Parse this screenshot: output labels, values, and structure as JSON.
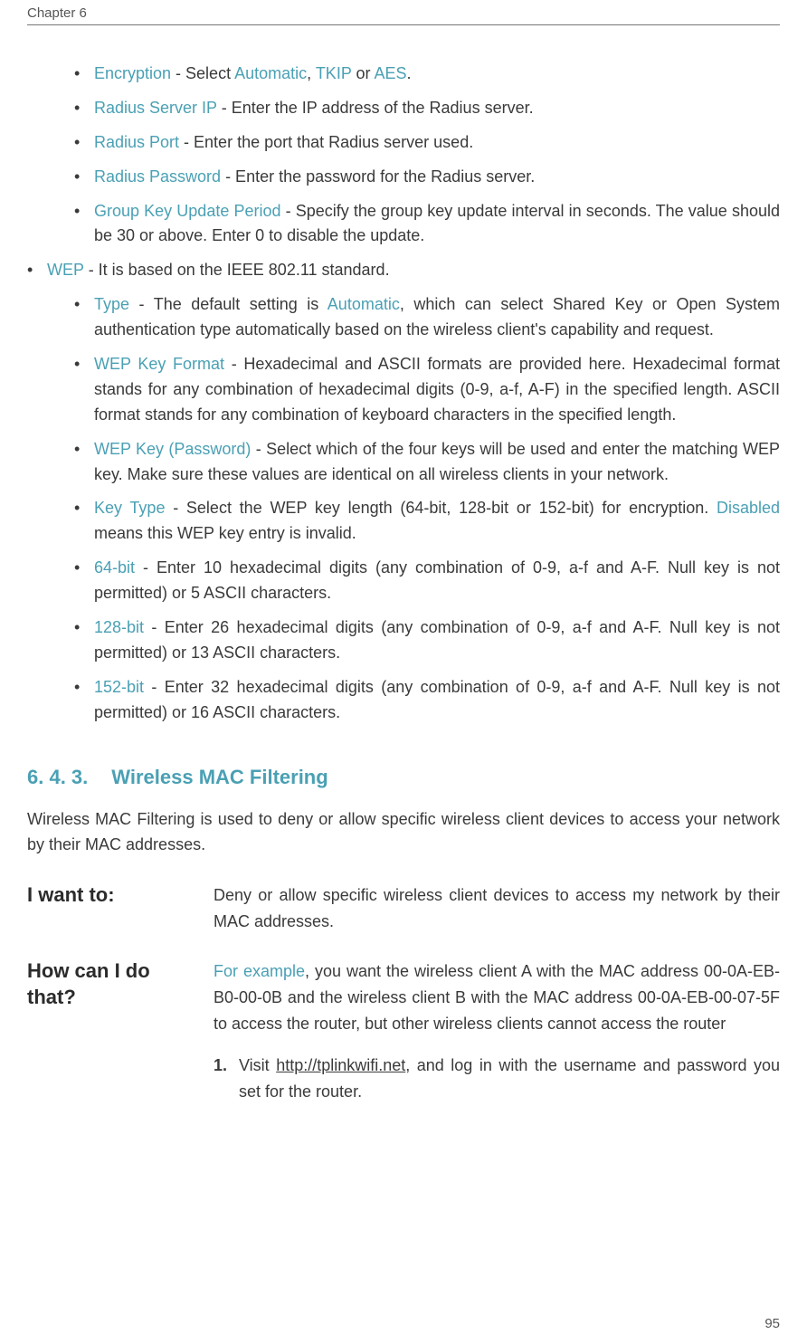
{
  "header": {
    "chapter": "Chapter 6"
  },
  "bulletsL2a": [
    {
      "term": "Encryption",
      "rest": " - Select ",
      "term2": "Automatic",
      "rest2": ", ",
      "term3": "TKIP",
      "rest3": " or ",
      "term4": "AES",
      "rest4": "."
    },
    {
      "term": "Radius Server IP",
      "rest": " - Enter the IP address of the Radius server."
    },
    {
      "term": "Radius Port",
      "rest": " - Enter the port that Radius server used."
    },
    {
      "term": "Radius Password",
      "rest": " - Enter the password for the Radius server."
    },
    {
      "term": "Group Key Update Period",
      "rest": " - Specify the group key update interval in seconds. The value should be 30 or above. Enter 0 to disable the update."
    }
  ],
  "wepLine": {
    "term": "WEP",
    "rest": " - It is based on the IEEE 802.11 standard."
  },
  "bulletsL2b": [
    {
      "term": "Type",
      "rest": " - The default setting is ",
      "term2": "Automatic",
      "rest2": ", which can select Shared Key or Open System authentication type automatically based on the wireless client's capability and request."
    },
    {
      "term": "WEP Key Format",
      "rest": " - Hexadecimal and ASCII formats are provided here. Hexadecimal format stands for any combination of hexadecimal digits (0-9, a-f, A-F) in the specified length. ASCII format stands for any combination of keyboard characters in the specified length."
    },
    {
      "term": "WEP Key (Password)",
      "rest": " - Select which of the four keys will be used and enter the matching WEP key. Make sure these values are identical on all wireless clients in your network."
    },
    {
      "term": "Key Type",
      "rest": " - Select the WEP key length (64-bit, 128-bit or 152-bit) for encryption. ",
      "term2": "Disabled",
      "rest2": " means this WEP key entry is invalid."
    },
    {
      "term": "64-bit",
      "rest": " - Enter 10 hexadecimal digits (any combination of 0-9, a-f and A-F. Null key is not permitted) or 5 ASCII characters."
    },
    {
      "term": "128-bit",
      "rest": " - Enter 26 hexadecimal digits (any combination of 0-9, a-f and A-F. Null key is not permitted) or 13 ASCII characters."
    },
    {
      "term": "152-bit",
      "rest": " - Enter 32 hexadecimal digits (any combination of 0-9, a-f and A-F. Null key is not permitted) or 16 ASCII characters."
    }
  ],
  "section": {
    "number": "6. 4. 3.",
    "title": "Wireless MAC Filtering"
  },
  "introPara": "Wireless MAC Filtering is used to deny or allow specific wireless client devices to access your network by their MAC addresses.",
  "qa": {
    "wantLabel": "I want to:",
    "wantBody": "Deny or allow specific wireless client devices to access my network by their MAC addresses.",
    "howLabel": "How can I do that?",
    "exampleLabel": "For example",
    "exampleBody": ", you want the wireless client A with the MAC address 00-0A-EB-B0-00-0B and the wireless client B with the MAC address 00-0A-EB-00-07-5F to access the router, but other wireless clients cannot access the router",
    "step1a": "Visit ",
    "step1url": "http://tplinkwifi.net",
    "step1b": ", and log in with the username and password you set for the router."
  },
  "pageNumber": "95"
}
